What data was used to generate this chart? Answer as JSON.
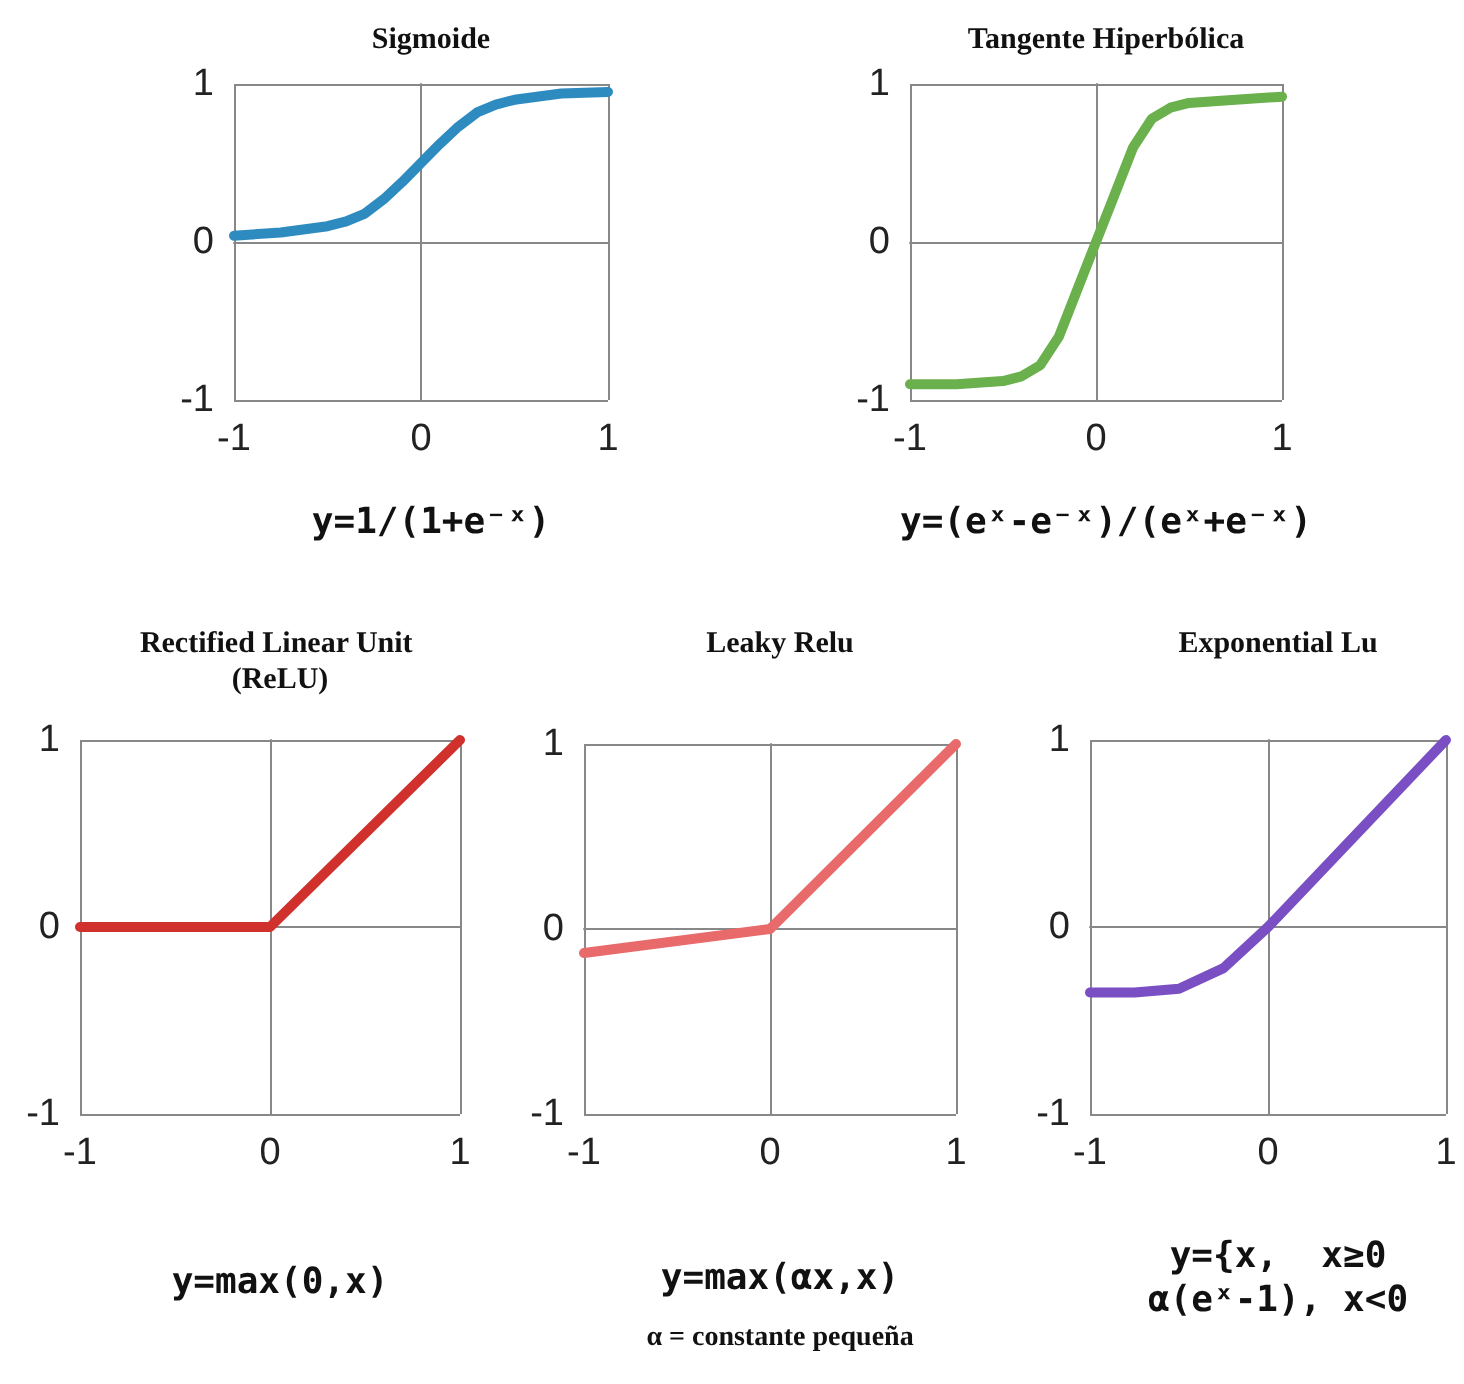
{
  "chart_data": [
    {
      "type": "line",
      "title": "Sigmoide",
      "xlabel": "y=1/(1+e⁻ˣ)",
      "x": [
        -1,
        -0.75,
        -0.5,
        -0.4,
        -0.3,
        -0.2,
        -0.1,
        0,
        0.1,
        0.2,
        0.3,
        0.4,
        0.5,
        0.75,
        1
      ],
      "series": [
        {
          "color": "#2e8bc0",
          "values": [
            0.04,
            0.06,
            0.1,
            0.13,
            0.18,
            0.27,
            0.38,
            0.5,
            0.62,
            0.73,
            0.82,
            0.87,
            0.9,
            0.94,
            0.95
          ]
        }
      ],
      "xlim": [
        -1,
        1
      ],
      "ylim": [
        -1,
        1
      ],
      "xticks": [
        -1,
        0,
        1
      ],
      "yticks": [
        -1,
        0,
        1
      ],
      "grid": true,
      "marker": "none",
      "line_style": "solid"
    },
    {
      "type": "line",
      "title": "Tangente Hiperbólica",
      "xlabel": "y=(eˣ-e⁻ˣ)/(eˣ+e⁻ˣ)",
      "x": [
        -1,
        -0.75,
        -0.5,
        -0.4,
        -0.3,
        -0.2,
        -0.1,
        0,
        0.1,
        0.2,
        0.3,
        0.4,
        0.5,
        0.75,
        1
      ],
      "series": [
        {
          "color": "#6ab04c",
          "values": [
            -0.9,
            -0.9,
            -0.88,
            -0.85,
            -0.78,
            -0.6,
            -0.3,
            0,
            0.3,
            0.6,
            0.78,
            0.85,
            0.88,
            0.9,
            0.92
          ]
        }
      ],
      "xlim": [
        -1,
        1
      ],
      "ylim": [
        -1,
        1
      ],
      "xticks": [
        -1,
        0,
        1
      ],
      "yticks": [
        -1,
        0,
        1
      ],
      "grid": true,
      "marker": "none",
      "line_style": "solid"
    },
    {
      "type": "line",
      "title": "Rectified Linear Unit (ReLU)",
      "xlabel": "y=max(0,x)",
      "x": [
        -1,
        0,
        1
      ],
      "series": [
        {
          "color": "#d0312d",
          "values": [
            0,
            0,
            1
          ]
        }
      ],
      "xlim": [
        -1,
        1
      ],
      "ylim": [
        -1,
        1
      ],
      "xticks": [
        -1,
        0,
        1
      ],
      "yticks": [
        -1,
        0,
        1
      ],
      "grid": true,
      "marker": "none",
      "line_style": "solid"
    },
    {
      "type": "line",
      "title": "Leaky Relu",
      "xlabel": "y=max(αx,x)",
      "annotations": [
        "α = constante pequeña"
      ],
      "x": [
        -1,
        0,
        1
      ],
      "series": [
        {
          "color": "#e86a6a",
          "values": [
            -0.13,
            0,
            1
          ]
        }
      ],
      "xlim": [
        -1,
        1
      ],
      "ylim": [
        -1,
        1
      ],
      "xticks": [
        -1,
        0,
        1
      ],
      "yticks": [
        -1,
        0,
        1
      ],
      "grid": true,
      "marker": "none",
      "line_style": "solid"
    },
    {
      "type": "line",
      "title": "Exponential Lu",
      "xlabel": "y={x,  x≥0\nα(eˣ-1), x<0",
      "x": [
        -1,
        -0.75,
        -0.5,
        -0.25,
        0,
        0.5,
        1
      ],
      "series": [
        {
          "color": "#7a4fc4",
          "values": [
            -0.35,
            -0.35,
            -0.33,
            -0.22,
            0,
            0.5,
            1
          ]
        }
      ],
      "xlim": [
        -1,
        1
      ],
      "ylim": [
        -1,
        1
      ],
      "xticks": [
        -1,
        0,
        1
      ],
      "yticks": [
        -1,
        0,
        1
      ],
      "grid": true,
      "marker": "none",
      "line_style": "solid"
    }
  ]
}
